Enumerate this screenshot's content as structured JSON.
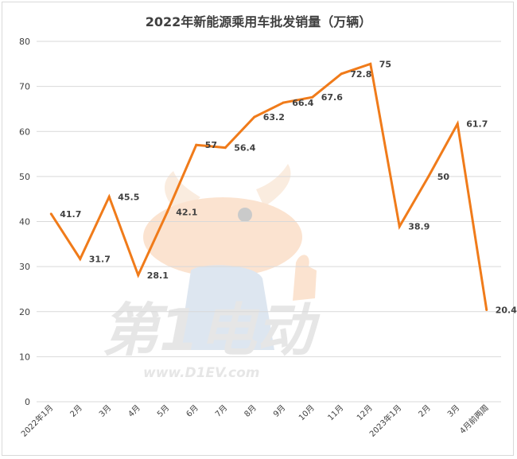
{
  "chart_data": {
    "type": "line",
    "title": "2022年新能源乘用车批发销量（万辆）",
    "xlabel": "",
    "ylabel": "",
    "ylim": [
      0,
      80
    ],
    "yticks": [
      0,
      10,
      20,
      30,
      40,
      50,
      60,
      70,
      80
    ],
    "grid": true,
    "legend": "none",
    "categories": [
      "2022年1月",
      "2月",
      "3月",
      "4月",
      "5月",
      "6月",
      "7月",
      "8月",
      "9月",
      "10月",
      "11月",
      "12月",
      "2023年1月",
      "2月",
      "3月",
      "4月前两周"
    ],
    "series": [
      {
        "values": [
          41.7,
          31.7,
          45.5,
          28.1,
          42.1,
          57,
          56.4,
          63.2,
          66.4,
          67.6,
          72.8,
          75,
          38.9,
          50,
          61.7,
          20.4
        ],
        "labels": [
          "41.7",
          "31.7",
          "45.5",
          "28.1",
          "42.1",
          "57",
          "56.4",
          "63.2",
          "66.4",
          "67.6",
          "72.8",
          "75",
          "38.9",
          "50",
          "61.7",
          "20.4"
        ],
        "color": "#f07b1a"
      }
    ]
  },
  "watermark": {
    "brand": "第1电动",
    "url": "www.D1EV.com"
  },
  "colors": {
    "line": "#f07b1a",
    "grid": "#d9d9d9",
    "text": "#404040"
  }
}
